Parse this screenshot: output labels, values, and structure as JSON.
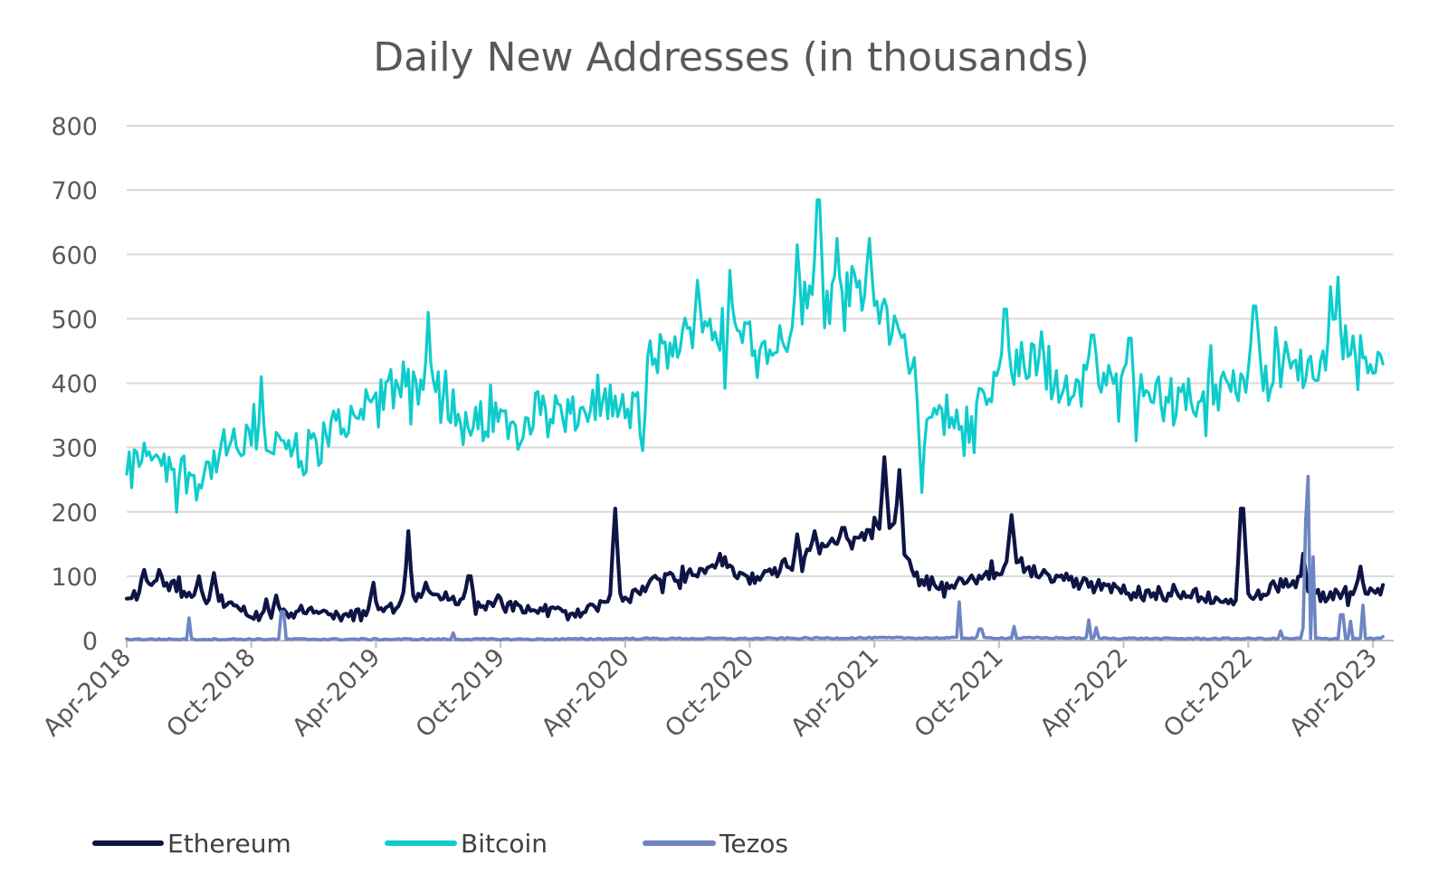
{
  "chart_data": {
    "type": "line",
    "title": "Daily New Addresses (in thousands)",
    "xlabel": "",
    "ylabel": "",
    "ylim": [
      0,
      800
    ],
    "yticks": [
      0,
      100,
      200,
      300,
      400,
      500,
      600,
      700,
      800
    ],
    "x_unit": "months since Apr-2018",
    "x_range": [
      0,
      61
    ],
    "x_ticks": [
      {
        "label": "Apr-2018",
        "x": 0
      },
      {
        "label": "Oct-2018",
        "x": 6
      },
      {
        "label": "Apr-2019",
        "x": 12
      },
      {
        "label": "Oct-2019",
        "x": 18
      },
      {
        "label": "Apr-2020",
        "x": 24
      },
      {
        "label": "Oct-2020",
        "x": 30
      },
      {
        "label": "Apr-2021",
        "x": 36
      },
      {
        "label": "Oct-2021",
        "x": 42
      },
      {
        "label": "Apr-2022",
        "x": 48
      },
      {
        "label": "Oct-2022",
        "x": 54
      },
      {
        "label": "Apr-2023",
        "x": 60
      }
    ],
    "legend_position": "bottom-left",
    "grid": true,
    "series": [
      {
        "name": "Bitcoin",
        "color": "#0fcccc",
        "points": [
          [
            0,
            250
          ],
          [
            0.5,
            280
          ],
          [
            1,
            300
          ],
          [
            1.5,
            290
          ],
          [
            2,
            275
          ],
          [
            2.5,
            265
          ],
          [
            3,
            260
          ],
          [
            3.5,
            250
          ],
          [
            4,
            270
          ],
          [
            4.5,
            290
          ],
          [
            5,
            300
          ],
          [
            5.5,
            295
          ],
          [
            6,
            305
          ],
          [
            6.5,
            300
          ],
          [
            7,
            310
          ],
          [
            7.5,
            300
          ],
          [
            8,
            295
          ],
          [
            8.5,
            285
          ],
          [
            9,
            300
          ],
          [
            9.5,
            315
          ],
          [
            10,
            330
          ],
          [
            10.5,
            340
          ],
          [
            11,
            350
          ],
          [
            11.5,
            360
          ],
          [
            12,
            385
          ],
          [
            12.5,
            380
          ],
          [
            13,
            395
          ],
          [
            13.5,
            400
          ],
          [
            14,
            395
          ],
          [
            14.5,
            405
          ],
          [
            15,
            410
          ],
          [
            15.5,
            370
          ],
          [
            16,
            340
          ],
          [
            16.5,
            330
          ],
          [
            17,
            335
          ],
          [
            17.5,
            340
          ],
          [
            18,
            345
          ],
          [
            18.5,
            340
          ],
          [
            19,
            335
          ],
          [
            19.5,
            350
          ],
          [
            20,
            355
          ],
          [
            20.5,
            360
          ],
          [
            21,
            350
          ],
          [
            21.5,
            340
          ],
          [
            22,
            355
          ],
          [
            22.5,
            370
          ],
          [
            23,
            375
          ],
          [
            23.5,
            365
          ],
          [
            24,
            345
          ],
          [
            24.5,
            370
          ],
          [
            25,
            420
          ],
          [
            25.5,
            450
          ],
          [
            26,
            440
          ],
          [
            26.5,
            460
          ],
          [
            27,
            470
          ],
          [
            27.5,
            480
          ],
          [
            28,
            490
          ],
          [
            28.5,
            475
          ],
          [
            29,
            470
          ],
          [
            29.5,
            480
          ],
          [
            30,
            475
          ],
          [
            30.5,
            470
          ],
          [
            31,
            460
          ],
          [
            31.5,
            470
          ],
          [
            32,
            490
          ],
          [
            32.5,
            520
          ],
          [
            33,
            530
          ],
          [
            33.5,
            520
          ],
          [
            34,
            530
          ],
          [
            34.5,
            545
          ],
          [
            35,
            540
          ],
          [
            35.5,
            530
          ],
          [
            36,
            525
          ],
          [
            36.5,
            510
          ],
          [
            37,
            495
          ],
          [
            37.5,
            440
          ],
          [
            38,
            400
          ],
          [
            38.5,
            380
          ],
          [
            39,
            350
          ],
          [
            39.5,
            340
          ],
          [
            40,
            330
          ],
          [
            40.5,
            345
          ],
          [
            41,
            365
          ],
          [
            41.5,
            385
          ],
          [
            42,
            400
          ],
          [
            42.5,
            410
          ],
          [
            43,
            425
          ],
          [
            43.5,
            440
          ],
          [
            44,
            430
          ],
          [
            44.5,
            415
          ],
          [
            45,
            400
          ],
          [
            45.5,
            395
          ],
          [
            46,
            400
          ],
          [
            46.5,
            405
          ],
          [
            47,
            400
          ],
          [
            47.5,
            395
          ],
          [
            48,
            395
          ],
          [
            48.5,
            390
          ],
          [
            49,
            385
          ],
          [
            49.5,
            390
          ],
          [
            50,
            375
          ],
          [
            50.5,
            370
          ],
          [
            51,
            380
          ],
          [
            51.5,
            385
          ],
          [
            52,
            390
          ],
          [
            52.5,
            385
          ],
          [
            53,
            385
          ],
          [
            53.5,
            395
          ],
          [
            54,
            400
          ],
          [
            54.5,
            410
          ],
          [
            55,
            415
          ],
          [
            55.5,
            425
          ],
          [
            56,
            430
          ],
          [
            56.5,
            420
          ],
          [
            57,
            425
          ],
          [
            57.5,
            415
          ],
          [
            58,
            440
          ],
          [
            58.5,
            455
          ],
          [
            59,
            460
          ],
          [
            59.5,
            445
          ],
          [
            60,
            450
          ],
          [
            60.5,
            440
          ]
        ],
        "noise": 34,
        "spikes": [
          [
            6.5,
            410
          ],
          [
            11.5,
            390
          ],
          [
            14.5,
            510
          ],
          [
            24.8,
            295
          ],
          [
            27.5,
            560
          ],
          [
            29,
            575
          ],
          [
            32.3,
            615
          ],
          [
            33.3,
            685
          ],
          [
            34.2,
            625
          ],
          [
            35.8,
            625
          ],
          [
            38.3,
            230
          ],
          [
            42.3,
            515
          ],
          [
            44,
            480
          ],
          [
            46.5,
            475
          ],
          [
            48.3,
            470
          ],
          [
            54.3,
            520
          ],
          [
            58,
            550
          ],
          [
            58.3,
            565
          ],
          [
            60.5,
            510
          ],
          [
            60.6,
            370
          ]
        ]
      },
      {
        "name": "Ethereum",
        "color": "#0e1545",
        "points": [
          [
            0,
            70
          ],
          [
            0.5,
            75
          ],
          [
            1,
            85
          ],
          [
            1.5,
            90
          ],
          [
            2,
            85
          ],
          [
            2.5,
            80
          ],
          [
            3,
            75
          ],
          [
            3.5,
            70
          ],
          [
            4,
            65
          ],
          [
            4.5,
            60
          ],
          [
            5,
            55
          ],
          [
            5.5,
            48
          ],
          [
            6,
            45
          ],
          [
            6.5,
            42
          ],
          [
            7,
            44
          ],
          [
            7.5,
            42
          ],
          [
            8,
            45
          ],
          [
            8.5,
            48
          ],
          [
            9,
            45
          ],
          [
            9.5,
            42
          ],
          [
            10,
            40
          ],
          [
            10.5,
            35
          ],
          [
            11,
            38
          ],
          [
            11.5,
            42
          ],
          [
            12,
            48
          ],
          [
            12.5,
            52
          ],
          [
            13,
            58
          ],
          [
            13.5,
            65
          ],
          [
            14,
            70
          ],
          [
            14.5,
            72
          ],
          [
            15,
            68
          ],
          [
            15.5,
            65
          ],
          [
            16,
            62
          ],
          [
            16.5,
            60
          ],
          [
            17,
            58
          ],
          [
            17.5,
            57
          ],
          [
            18,
            55
          ],
          [
            18.5,
            54
          ],
          [
            19,
            52
          ],
          [
            19.5,
            50
          ],
          [
            20,
            48
          ],
          [
            20.5,
            45
          ],
          [
            21,
            42
          ],
          [
            21.5,
            40
          ],
          [
            22,
            45
          ],
          [
            22.5,
            50
          ],
          [
            23,
            55
          ],
          [
            23.5,
            60
          ],
          [
            24,
            65
          ],
          [
            24.5,
            75
          ],
          [
            25,
            85
          ],
          [
            25.5,
            95
          ],
          [
            26,
            100
          ],
          [
            26.5,
            98
          ],
          [
            27,
            100
          ],
          [
            27.5,
            105
          ],
          [
            28,
            110
          ],
          [
            28.5,
            115
          ],
          [
            29,
            112
          ],
          [
            29.5,
            100
          ],
          [
            30,
            95
          ],
          [
            30.5,
            100
          ],
          [
            31,
            105
          ],
          [
            31.5,
            110
          ],
          [
            32,
            115
          ],
          [
            32.5,
            125
          ],
          [
            33,
            135
          ],
          [
            33.5,
            140
          ],
          [
            34,
            145
          ],
          [
            34.5,
            145
          ],
          [
            35,
            150
          ],
          [
            35.5,
            160
          ],
          [
            36,
            170
          ],
          [
            36.5,
            180
          ],
          [
            37,
            175
          ],
          [
            37.5,
            130
          ],
          [
            38,
            100
          ],
          [
            38.5,
            90
          ],
          [
            39,
            85
          ],
          [
            39.5,
            85
          ],
          [
            40,
            88
          ],
          [
            40.5,
            90
          ],
          [
            41,
            95
          ],
          [
            41.5,
            100
          ],
          [
            42,
            105
          ],
          [
            42.5,
            130
          ],
          [
            43,
            120
          ],
          [
            43.5,
            110
          ],
          [
            44,
            105
          ],
          [
            44.5,
            100
          ],
          [
            45,
            95
          ],
          [
            45.5,
            90
          ],
          [
            46,
            88
          ],
          [
            46.5,
            85
          ],
          [
            47,
            85
          ],
          [
            47.5,
            82
          ],
          [
            48,
            80
          ],
          [
            48.5,
            78
          ],
          [
            49,
            75
          ],
          [
            49.5,
            74
          ],
          [
            50,
            72
          ],
          [
            50.5,
            70
          ],
          [
            51,
            70
          ],
          [
            51.5,
            68
          ],
          [
            52,
            66
          ],
          [
            52.5,
            65
          ],
          [
            53,
            63
          ],
          [
            53.5,
            62
          ],
          [
            54,
            65
          ],
          [
            54.5,
            72
          ],
          [
            55,
            78
          ],
          [
            55.5,
            85
          ],
          [
            56,
            90
          ],
          [
            56.5,
            95
          ],
          [
            57,
            80
          ],
          [
            57.5,
            65
          ],
          [
            58,
            68
          ],
          [
            58.5,
            72
          ],
          [
            59,
            75
          ],
          [
            59.5,
            78
          ],
          [
            60,
            80
          ],
          [
            60.5,
            80
          ]
        ],
        "noise": 10,
        "spikes": [
          [
            0.8,
            110
          ],
          [
            1.6,
            110
          ],
          [
            3.5,
            100
          ],
          [
            4.2,
            105
          ],
          [
            7.2,
            70
          ],
          [
            11.9,
            90
          ],
          [
            13.6,
            170
          ],
          [
            16.5,
            100
          ],
          [
            23.4,
            85
          ],
          [
            23.5,
            205
          ],
          [
            28.6,
            135
          ],
          [
            32.3,
            165
          ],
          [
            33.1,
            170
          ],
          [
            34.5,
            175
          ],
          [
            36.5,
            285
          ],
          [
            37.2,
            265
          ],
          [
            42.6,
            195
          ],
          [
            53.7,
            205
          ],
          [
            56.6,
            135
          ],
          [
            59.4,
            115
          ]
        ]
      },
      {
        "name": "Tezos",
        "color": "#6e84c3",
        "points": [
          [
            0,
            2
          ],
          [
            5,
            2
          ],
          [
            10,
            2
          ],
          [
            15,
            2
          ],
          [
            20,
            2
          ],
          [
            25,
            3
          ],
          [
            30,
            3
          ],
          [
            35,
            4
          ],
          [
            38,
            4
          ],
          [
            40,
            4
          ],
          [
            45,
            4
          ],
          [
            50,
            3
          ],
          [
            55,
            3
          ],
          [
            56,
            3
          ],
          [
            57,
            3
          ],
          [
            58,
            3
          ],
          [
            60,
            3
          ],
          [
            60.5,
            3
          ]
        ],
        "noise": 1.2,
        "spikes": [
          [
            3,
            35
          ],
          [
            7.5,
            45
          ],
          [
            15.7,
            12
          ],
          [
            40.1,
            60
          ],
          [
            41.1,
            18
          ],
          [
            42.7,
            22
          ],
          [
            46.3,
            32
          ],
          [
            46.7,
            20
          ],
          [
            55.6,
            15
          ],
          [
            56.7,
            20
          ],
          [
            56.8,
            185
          ],
          [
            56.85,
            255
          ],
          [
            57.1,
            130
          ],
          [
            58.5,
            40
          ],
          [
            58.9,
            30
          ],
          [
            59.5,
            55
          ],
          [
            60.5,
            6
          ]
        ]
      }
    ]
  }
}
